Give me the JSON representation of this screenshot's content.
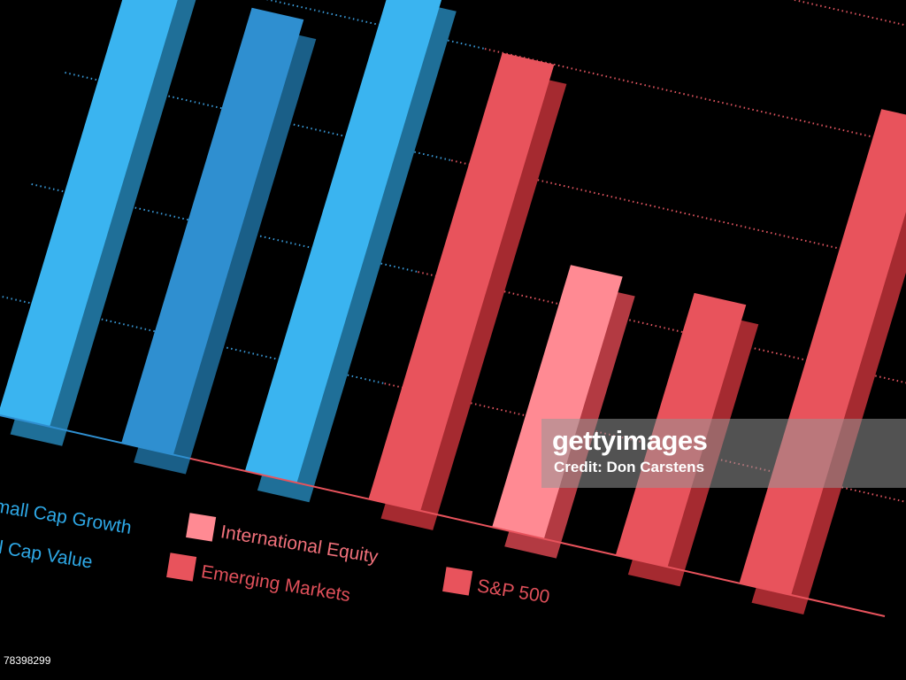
{
  "chart_data": {
    "type": "bar",
    "title": "",
    "xlabel": "",
    "ylabel": "",
    "grid": true,
    "legend_position": "bottom",
    "ylim": [
      0,
      100
    ],
    "series": [
      {
        "name": "mall Cap Growth",
        "value": 80,
        "color": "#3ab4f0",
        "shadow": "#1f6f98"
      },
      {
        "name": "",
        "value": 78,
        "color": "#2f8fd0",
        "shadow": "#1a5f88"
      },
      {
        "name": "ll Cap Value",
        "value": 88,
        "color": "#3ab4f0",
        "shadow": "#1f6f98"
      },
      {
        "name": "",
        "value": 80,
        "color": "#e8535c",
        "shadow": "#a52a30"
      },
      {
        "name": "International Equity",
        "value": 47,
        "color": "#ff8a93",
        "shadow": "#b33a42"
      },
      {
        "name": "Emerging Markets",
        "value": 47,
        "color": "#e8535c",
        "shadow": "#a52a30"
      },
      {
        "name": "S&P 500",
        "value": 85,
        "color": "#e8535c",
        "shadow": "#a52a30"
      }
    ]
  },
  "legend": [
    {
      "label": "mall Cap Growth",
      "color": "#3ab4f0",
      "text_color": "#2ea8e6",
      "swatch": false
    },
    {
      "label": "ll Cap Value",
      "color": "#3ab4f0",
      "text_color": "#2ea8e6",
      "swatch": false
    },
    {
      "label": "International Equity",
      "color": "#ff8a93",
      "text_color": "#f0707a",
      "swatch": true
    },
    {
      "label": "Emerging Markets",
      "color": "#e8535c",
      "text_color": "#e0505a",
      "swatch": true
    },
    {
      "label": "S&P 500",
      "color": "#e8535c",
      "text_color": "#e0505a",
      "swatch": true
    }
  ],
  "watermark": {
    "line1": "gettyimages",
    "line2": "Credit: Don Carstens",
    "image_id": "78398299"
  }
}
